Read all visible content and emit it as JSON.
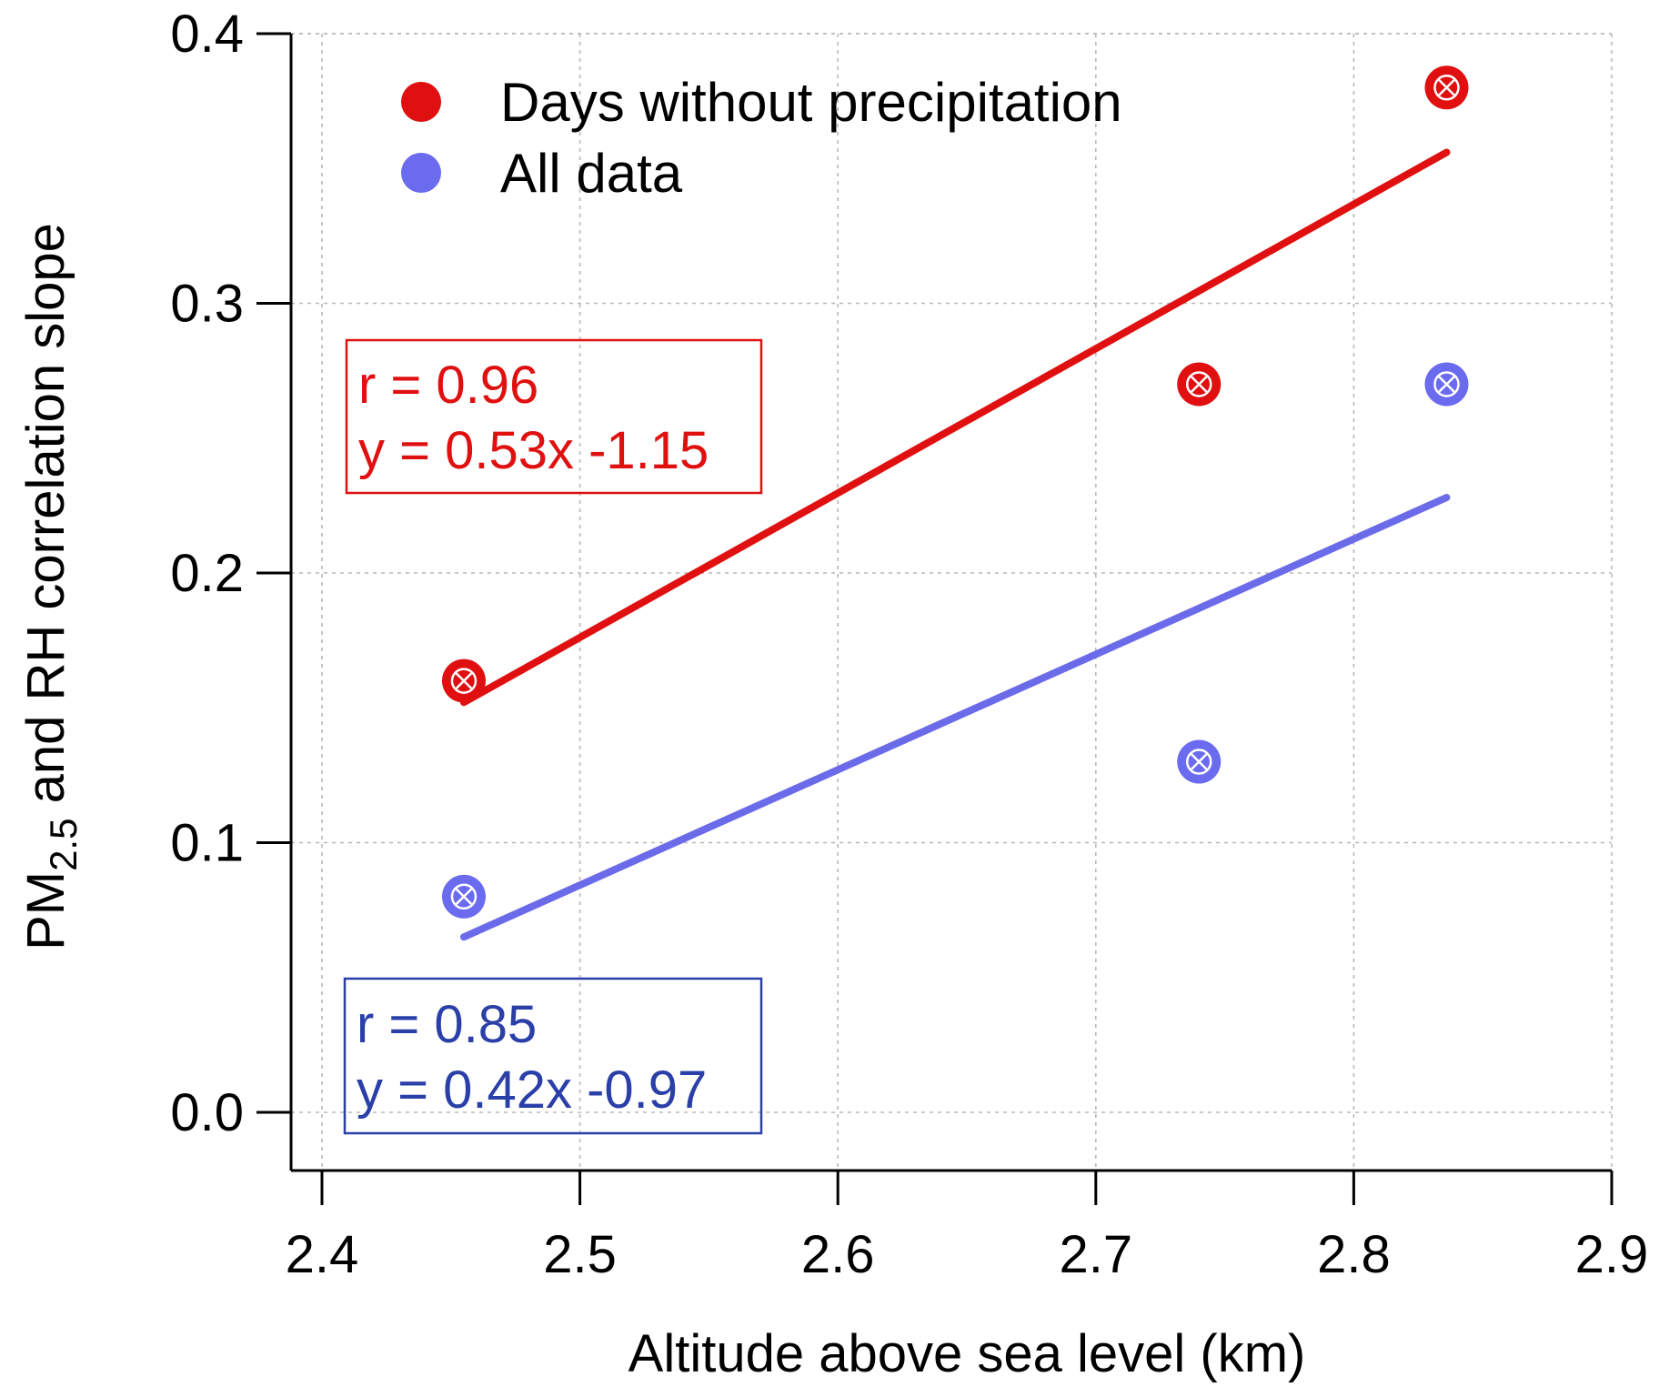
{
  "chart_data": {
    "type": "scatter",
    "title": "",
    "xlabel": "Altitude above sea level (km)",
    "ylabel": {
      "prefix": "PM",
      "subscript": "2.5",
      "suffix": " and RH correlation slope"
    },
    "xlim": [
      2.4,
      2.9
    ],
    "ylim": [
      0.0,
      0.4
    ],
    "xticks": [
      2.4,
      2.5,
      2.6,
      2.7,
      2.8,
      2.9
    ],
    "xtick_labels": [
      "2.4",
      "2.5",
      "2.6",
      "2.7",
      "2.8",
      "2.9"
    ],
    "yticks": [
      0.0,
      0.1,
      0.2,
      0.3,
      0.4
    ],
    "ytick_labels": [
      "0.0",
      "0.1",
      "0.2",
      "0.3",
      "0.4"
    ],
    "grid": true,
    "legend_position": "top-left",
    "series": [
      {
        "name": "Days without precipitation",
        "color": "#e01010",
        "x": [
          2.455,
          2.74,
          2.836
        ],
        "y": [
          0.16,
          0.27,
          0.38
        ],
        "fit": {
          "x": [
            2.455,
            2.836
          ],
          "y": [
            0.152,
            0.356
          ]
        },
        "annotation": [
          "r = 0.96",
          "y = 0.53x -1.15"
        ]
      },
      {
        "name": "All data",
        "color": "#6b6bf0",
        "line_color": "#6b6bea",
        "annotation_color": "#2a3fa8",
        "x": [
          2.455,
          2.74,
          2.836
        ],
        "y": [
          0.08,
          0.13,
          0.27
        ],
        "fit": {
          "x": [
            2.455,
            2.836
          ],
          "y": [
            0.065,
            0.228
          ]
        },
        "annotation": [
          "r = 0.85",
          "y = 0.42x -0.97"
        ]
      }
    ]
  }
}
